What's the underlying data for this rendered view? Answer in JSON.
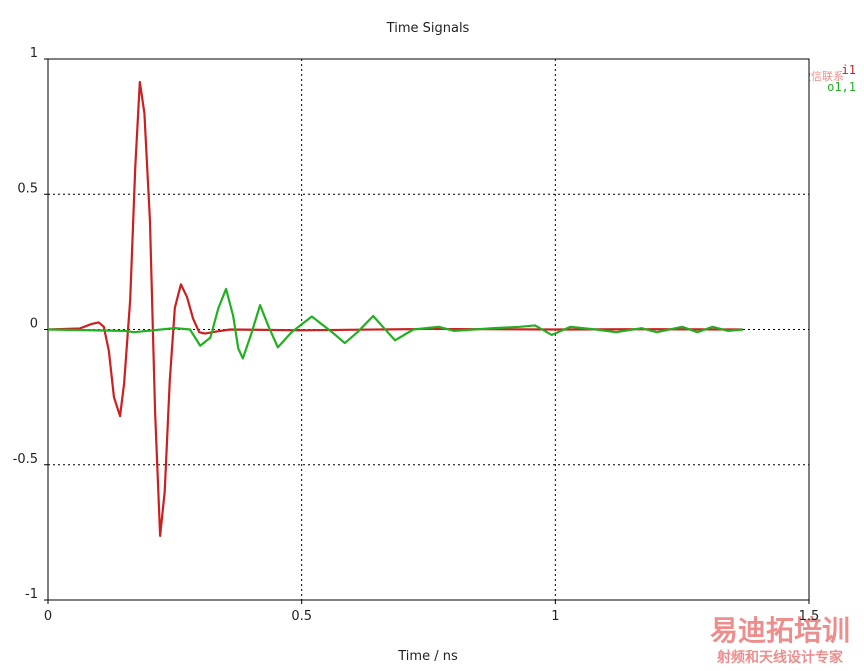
{
  "chart_data": {
    "type": "line",
    "title": "Time Signals",
    "xlabel": "Time / ns",
    "xlim": [
      0,
      1.5
    ],
    "xticks": [
      0,
      0.5,
      1,
      1.5
    ],
    "ylim": [
      -1,
      1
    ],
    "yticks": [
      -1,
      -0.5,
      0,
      0.5,
      1
    ],
    "grid": true,
    "legend": "top-right",
    "series": [
      {
        "name": "i1",
        "color": "#cc1f1f",
        "x": [
          0,
          0.063,
          0.085,
          0.1,
          0.11,
          0.12,
          0.13,
          0.142,
          0.15,
          0.162,
          0.172,
          0.181,
          0.19,
          0.201,
          0.211,
          0.221,
          0.23,
          0.24,
          0.25,
          0.262,
          0.274,
          0.286,
          0.298,
          0.309,
          0.33,
          0.359,
          0.5,
          0.75,
          1.0,
          1.2,
          1.37
        ],
        "values": [
          0,
          0.004,
          0.02,
          0.026,
          0.01,
          -0.08,
          -0.25,
          -0.32,
          -0.2,
          0.11,
          0.6,
          0.915,
          0.8,
          0.4,
          -0.3,
          -0.763,
          -0.6,
          -0.19,
          0.08,
          0.167,
          0.12,
          0.04,
          -0.01,
          -0.015,
          -0.008,
          0,
          -0.003,
          0.002,
          0,
          0.001,
          0
        ]
      },
      {
        "name": "o1,1",
        "color": "#22b022",
        "x": [
          0,
          0.15,
          0.17,
          0.25,
          0.28,
          0.3,
          0.32,
          0.336,
          0.351,
          0.365,
          0.375,
          0.384,
          0.4,
          0.418,
          0.435,
          0.453,
          0.48,
          0.52,
          0.56,
          0.585,
          0.61,
          0.641,
          0.66,
          0.684,
          0.72,
          0.77,
          0.8,
          0.88,
          0.93,
          0.96,
          0.993,
          1.03,
          1.08,
          1.12,
          1.17,
          1.2,
          1.25,
          1.28,
          1.31,
          1.34,
          1.37
        ],
        "values": [
          0,
          -0.005,
          -0.01,
          0.005,
          0,
          -0.06,
          -0.03,
          0.08,
          0.15,
          0.05,
          -0.07,
          -0.107,
          -0.02,
          0.09,
          0.01,
          -0.066,
          -0.01,
          0.048,
          -0.01,
          -0.05,
          -0.01,
          0.05,
          0.01,
          -0.04,
          0,
          0.01,
          -0.005,
          0.005,
          0.01,
          0.015,
          -0.02,
          0.01,
          0,
          -0.01,
          0.005,
          -0.01,
          0.01,
          -0.01,
          0.01,
          -0.005,
          0
        ]
      }
    ]
  },
  "watermark": {
    "brand": "易迪拓培训",
    "slogan": "射频和天线设计专家",
    "contact": "微信联系"
  }
}
